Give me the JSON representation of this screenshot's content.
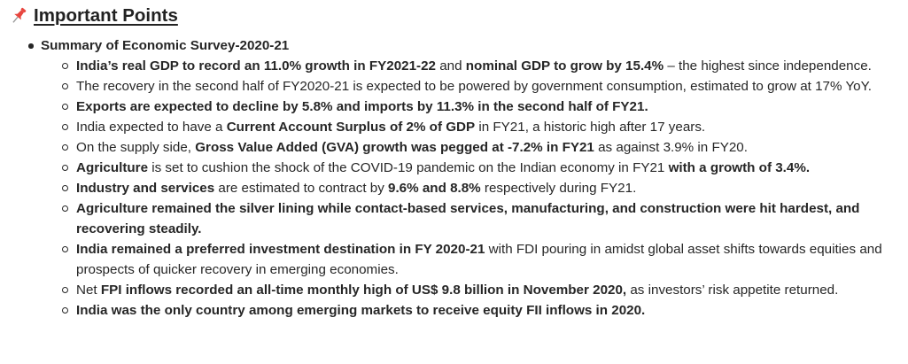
{
  "heading": {
    "icon": "pushpin-icon",
    "icon_color": "#e8463f",
    "text": "Important Points"
  },
  "summary": {
    "title": "Summary of Economic Survey-2020-21",
    "points": [
      {
        "parts": [
          {
            "text": "India’s real GDP to record an 11.0% growth in FY2021-22",
            "bold": true
          },
          {
            "text": " and ",
            "bold": false
          },
          {
            "text": "nominal GDP to grow by 15.4%",
            "bold": true
          },
          {
            "text": " – the highest since independence.",
            "bold": false
          }
        ]
      },
      {
        "parts": [
          {
            "text": "The recovery in the second half of FY2020-21 is expected to be powered by government consumption, estimated to grow at 17% YoY.",
            "bold": false
          }
        ]
      },
      {
        "parts": [
          {
            "text": "Exports are expected to decline by 5.8% and imports by 11.3% in the second half of FY21.",
            "bold": true
          }
        ]
      },
      {
        "parts": [
          {
            "text": "India expected to have a ",
            "bold": false
          },
          {
            "text": "Current Account Surplus of 2% of GDP",
            "bold": true
          },
          {
            "text": " in FY21, a historic high after 17 years.",
            "bold": false
          }
        ]
      },
      {
        "parts": [
          {
            "text": "On the supply side, ",
            "bold": false
          },
          {
            "text": "Gross Value Added (GVA) growth was pegged at -7.2% in FY21",
            "bold": true
          },
          {
            "text": " as against 3.9% in FY20.",
            "bold": false
          }
        ]
      },
      {
        "parts": [
          {
            "text": "Agriculture",
            "bold": true
          },
          {
            "text": " is set to cushion the shock of the COVID-19 pandemic on the Indian economy in FY21 ",
            "bold": false
          },
          {
            "text": "with a growth of 3.4%.",
            "bold": true
          }
        ]
      },
      {
        "parts": [
          {
            "text": "Industry and services",
            "bold": true
          },
          {
            "text": " are estimated to contract by ",
            "bold": false
          },
          {
            "text": "9.6% and 8.8%",
            "bold": true
          },
          {
            "text": " respectively during FY21.",
            "bold": false
          }
        ]
      },
      {
        "parts": [
          {
            "text": "Agriculture remained the silver lining while contact-based services, manufacturing, and construction were hit hardest, and recovering steadily.",
            "bold": true
          }
        ]
      },
      {
        "parts": [
          {
            "text": "India remained a preferred investment destination in FY 2020-21",
            "bold": true
          },
          {
            "text": " with FDI pouring in amidst global asset shifts towards equities and prospects of quicker recovery in emerging economies.",
            "bold": false
          }
        ]
      },
      {
        "parts": [
          {
            "text": "Net ",
            "bold": false
          },
          {
            "text": "FPI inflows recorded an all-time monthly high of US$ 9.8 billion in November 2020,",
            "bold": true
          },
          {
            "text": " as investors’ risk appetite returned.",
            "bold": false
          }
        ]
      },
      {
        "parts": [
          {
            "text": "India was the only country among emerging markets to receive equity FII inflows in 2020.",
            "bold": true
          }
        ]
      }
    ]
  }
}
